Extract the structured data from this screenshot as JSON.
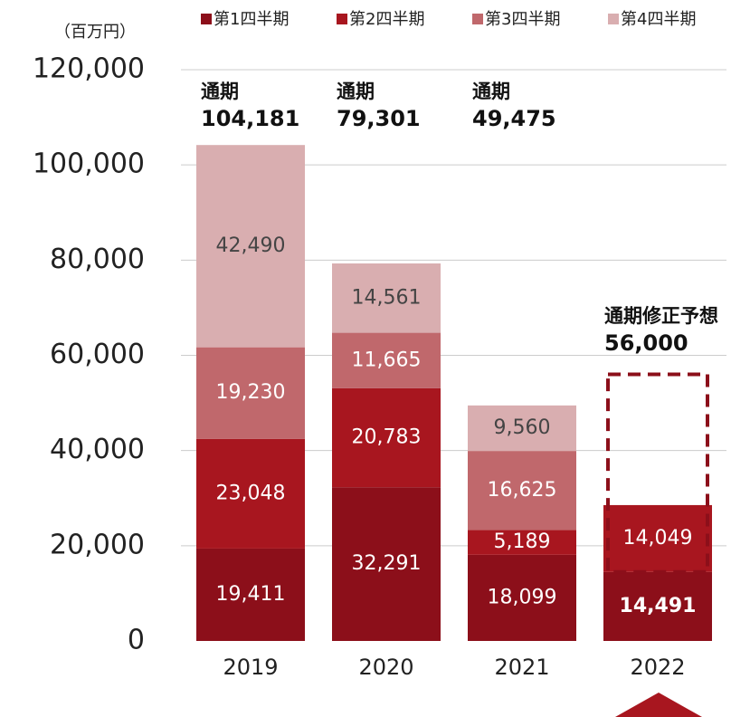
{
  "chart_data": {
    "type": "bar",
    "stacked": true,
    "unit_label": "（百万円）",
    "categories": [
      "2019",
      "2020",
      "2021",
      "2022"
    ],
    "series": [
      {
        "name": "第1四半期",
        "color": "#8c0f1a",
        "label_color": "#ffffff",
        "values": [
          19411,
          32291,
          18099,
          14491
        ],
        "value_labels": [
          "19,411",
          "32,291",
          "18,099",
          "14,491"
        ]
      },
      {
        "name": "第2四半期",
        "color": "#a8161f",
        "label_color": "#ffffff",
        "values": [
          23048,
          20783,
          5189,
          14049
        ],
        "value_labels": [
          "23,048",
          "20,783",
          "5,189",
          "14,049"
        ]
      },
      {
        "name": "第3四半期",
        "color": "#c0686c",
        "label_color": "#ffffff",
        "values": [
          19230,
          11665,
          16625,
          null
        ],
        "value_labels": [
          "19,230",
          "11,665",
          "16,625",
          null
        ]
      },
      {
        "name": "第4四半期",
        "color": "#d9aeb0",
        "label_color": "#444444",
        "values": [
          42490,
          14561,
          9560,
          null
        ],
        "value_labels": [
          "42,490",
          "14,561",
          "9,560",
          null
        ]
      }
    ],
    "annotations": [
      {
        "title": "通期",
        "value": 104181,
        "label": "104,181"
      },
      {
        "title": "通期",
        "value": 79301,
        "label": "79,301"
      },
      {
        "title": "通期",
        "value": 49475,
        "label": "49,475"
      },
      {
        "title": "通期修正予想",
        "value": 56000,
        "label": "56,000"
      }
    ],
    "forecast_color": "#8c0f1a",
    "ylim": [
      0,
      120000
    ],
    "yticks": [
      0,
      {
        "value": 20000,
        "label": "20,000"
      },
      {
        "value": 40000,
        "label": "40,000"
      },
      {
        "value": 60000,
        "label": "60,000"
      },
      {
        "value": 80000,
        "label": "80,000"
      },
      {
        "value": 100000,
        "label": "100,000"
      },
      {
        "value": 120000,
        "label": "120,000"
      }
    ],
    "grid": true
  }
}
